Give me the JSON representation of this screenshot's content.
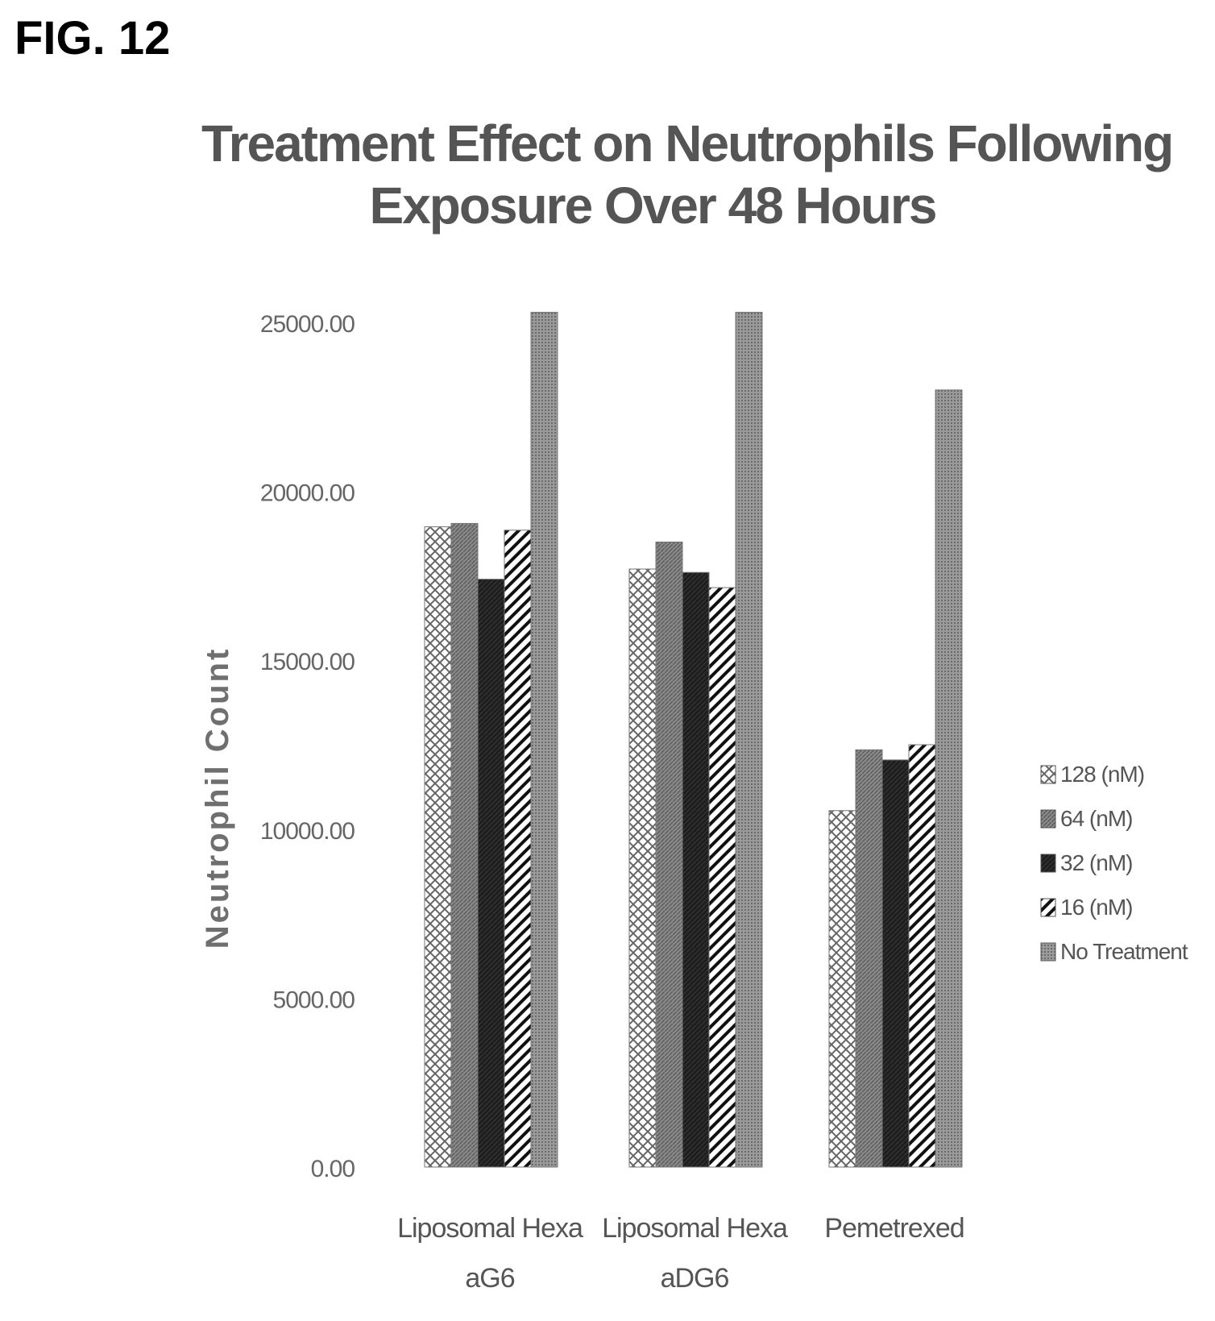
{
  "figure_label": "FIG. 12",
  "chart_data": {
    "type": "bar",
    "title_lines": [
      "Treatment Effect on Neutrophils Following",
      "Exposure Over 48 Hours"
    ],
    "ylabel": "Neutrophil Count",
    "xlabel": "",
    "ylim": [
      0,
      25000
    ],
    "yticks": [
      "0.00",
      "5000.00",
      "10000.00",
      "15000.00",
      "20000.00",
      "25000.00"
    ],
    "ytick_values": [
      0,
      5000,
      10000,
      15000,
      20000,
      25000
    ],
    "categories": [
      [
        "Liposomal Hexa",
        "aG6"
      ],
      [
        "Liposomal Hexa",
        "aDG6"
      ],
      [
        "Pemetrexed"
      ]
    ],
    "series": [
      {
        "name": "128 (nM)",
        "pattern": "crosshatch",
        "values": [
          18950,
          17700,
          10550
        ]
      },
      {
        "name": "64 (nM)",
        "pattern": "gray-fine",
        "values": [
          19050,
          18500,
          12350
        ]
      },
      {
        "name": "32 (nM)",
        "pattern": "dark",
        "values": [
          17400,
          17600,
          12050
        ]
      },
      {
        "name": "16 (nM)",
        "pattern": "diagonal",
        "values": [
          18850,
          17150,
          12500
        ]
      },
      {
        "name": "No Treatment",
        "pattern": "gray-dots",
        "values": [
          25300,
          25300,
          23000
        ]
      }
    ],
    "legend_position": "right",
    "grid": false
  }
}
